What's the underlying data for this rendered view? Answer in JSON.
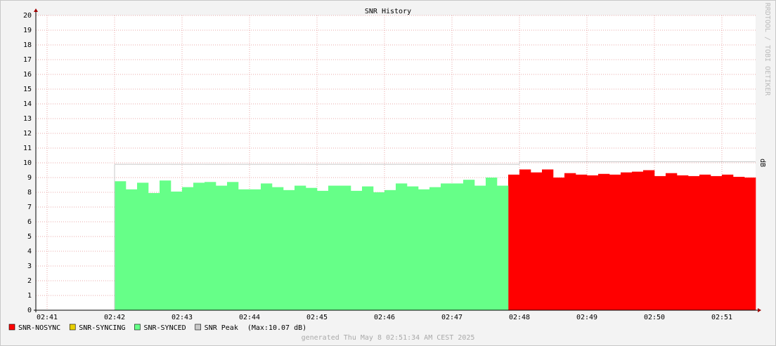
{
  "chart_data": {
    "type": "area",
    "title": "SNR History",
    "ylabel": "dB",
    "watermark": "RRDTOOL / TOBI OETIKER",
    "footer": "generated Thu May  8 02:51:34 AM CEST 2025",
    "legend_note": "(Max:10.07 dB)",
    "grid": true,
    "x": [
      42,
      42.1667,
      42.3333,
      42.5,
      42.6667,
      42.8333,
      43,
      43.1667,
      43.3333,
      43.5,
      43.6667,
      43.8333,
      44,
      44.1667,
      44.3333,
      44.5,
      44.6667,
      44.8333,
      45,
      45.1667,
      45.3333,
      45.5,
      45.6667,
      45.8333,
      46,
      46.1667,
      46.3333,
      46.5,
      46.6667,
      46.8333,
      47,
      47.1667,
      47.3333,
      47.5,
      47.6667,
      47.8333,
      48,
      48.1667,
      48.3333,
      48.5,
      48.6667,
      48.8333,
      49,
      49.1667,
      49.3333,
      49.5,
      49.6667,
      49.8333,
      50,
      50.1667,
      50.3333,
      50.5,
      50.6667,
      50.8333,
      51,
      51.1667,
      51.3333
    ],
    "xlim": [
      40.8333,
      51.5
    ],
    "xticks": [
      {
        "value": 41,
        "label": "02:41"
      },
      {
        "value": 42,
        "label": "02:42"
      },
      {
        "value": 43,
        "label": "02:43"
      },
      {
        "value": 44,
        "label": "02:44"
      },
      {
        "value": 45,
        "label": "02:45"
      },
      {
        "value": 46,
        "label": "02:46"
      },
      {
        "value": 47,
        "label": "02:47"
      },
      {
        "value": 48,
        "label": "02:48"
      },
      {
        "value": 49,
        "label": "02:49"
      },
      {
        "value": 50,
        "label": "02:50"
      },
      {
        "value": 51,
        "label": "02:51"
      }
    ],
    "ylim": [
      0,
      20
    ],
    "yticks": [
      0,
      1,
      2,
      3,
      4,
      5,
      6,
      7,
      8,
      9,
      10,
      11,
      12,
      13,
      14,
      15,
      16,
      17,
      18,
      19,
      20
    ],
    "series": [
      {
        "name": "SNR-NOSYNC",
        "color": "#ff0000",
        "values": [
          null,
          null,
          null,
          null,
          null,
          null,
          null,
          null,
          null,
          null,
          null,
          null,
          null,
          null,
          null,
          null,
          null,
          null,
          null,
          null,
          null,
          null,
          null,
          null,
          null,
          null,
          null,
          null,
          null,
          null,
          null,
          null,
          null,
          null,
          null,
          9.2,
          9.55,
          9.35,
          9.55,
          9.0,
          9.3,
          9.2,
          9.15,
          9.25,
          9.2,
          9.35,
          9.4,
          9.5,
          9.1,
          9.3,
          9.15,
          9.1,
          9.2,
          9.1,
          9.2,
          9.05,
          9.0
        ]
      },
      {
        "name": "SNR-SYNCING",
        "color": "#e8d000",
        "values": [
          null,
          null,
          null,
          null,
          null,
          null,
          null,
          null,
          null,
          null,
          null,
          null,
          null,
          null,
          null,
          null,
          null,
          null,
          null,
          null,
          null,
          null,
          null,
          null,
          null,
          null,
          null,
          null,
          null,
          null,
          null,
          null,
          null,
          null,
          null,
          null,
          null,
          null,
          null,
          null,
          null,
          null,
          null,
          null,
          null,
          null,
          null,
          null,
          null,
          null,
          null,
          null,
          null,
          null,
          null,
          null,
          null
        ]
      },
      {
        "name": "SNR-SYNCED",
        "color": "#66ff88",
        "values": [
          8.75,
          8.2,
          8.65,
          7.95,
          8.8,
          8.05,
          8.35,
          8.65,
          8.7,
          8.45,
          8.7,
          8.2,
          8.2,
          8.6,
          8.35,
          8.15,
          8.45,
          8.3,
          8.1,
          8.45,
          8.45,
          8.1,
          8.4,
          8.0,
          8.15,
          8.6,
          8.4,
          8.2,
          8.35,
          8.6,
          8.6,
          8.85,
          8.45,
          9.0,
          8.45,
          null,
          null,
          null,
          null,
          null,
          null,
          null,
          null,
          null,
          null,
          null,
          null,
          null,
          null,
          null,
          null,
          null,
          null,
          null,
          null,
          null,
          null
        ]
      },
      {
        "name": "SNR Peak",
        "color": "#c8c8c8",
        "line": true,
        "values": [
          9.9,
          9.9,
          9.9,
          9.9,
          9.9,
          9.9,
          9.9,
          9.9,
          9.9,
          9.9,
          9.9,
          9.9,
          9.9,
          9.9,
          9.9,
          9.9,
          9.9,
          9.9,
          9.9,
          9.9,
          9.9,
          9.9,
          9.9,
          9.9,
          9.9,
          9.9,
          9.9,
          9.9,
          9.9,
          9.9,
          9.9,
          9.9,
          9.9,
          9.9,
          9.9,
          9.9,
          10.07,
          10.07,
          10.07,
          10.07,
          10.07,
          10.07,
          10.07,
          10.07,
          10.07,
          10.07,
          10.07,
          10.07,
          10.07,
          10.07,
          10.07,
          10.07,
          10.07,
          10.07,
          10.07,
          10.07,
          10.07
        ]
      }
    ]
  }
}
